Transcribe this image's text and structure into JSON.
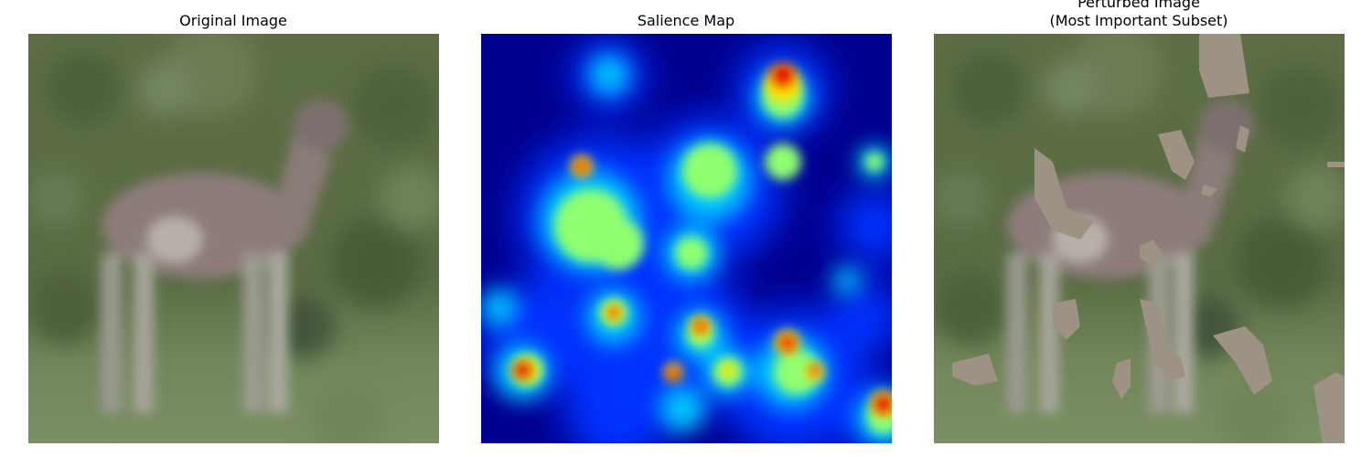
{
  "panels": [
    {
      "title": "Original Image"
    },
    {
      "title": "Salience Map"
    },
    {
      "title_lines": [
        "Perturbed Image",
        "(Most Important Subset)"
      ]
    }
  ]
}
